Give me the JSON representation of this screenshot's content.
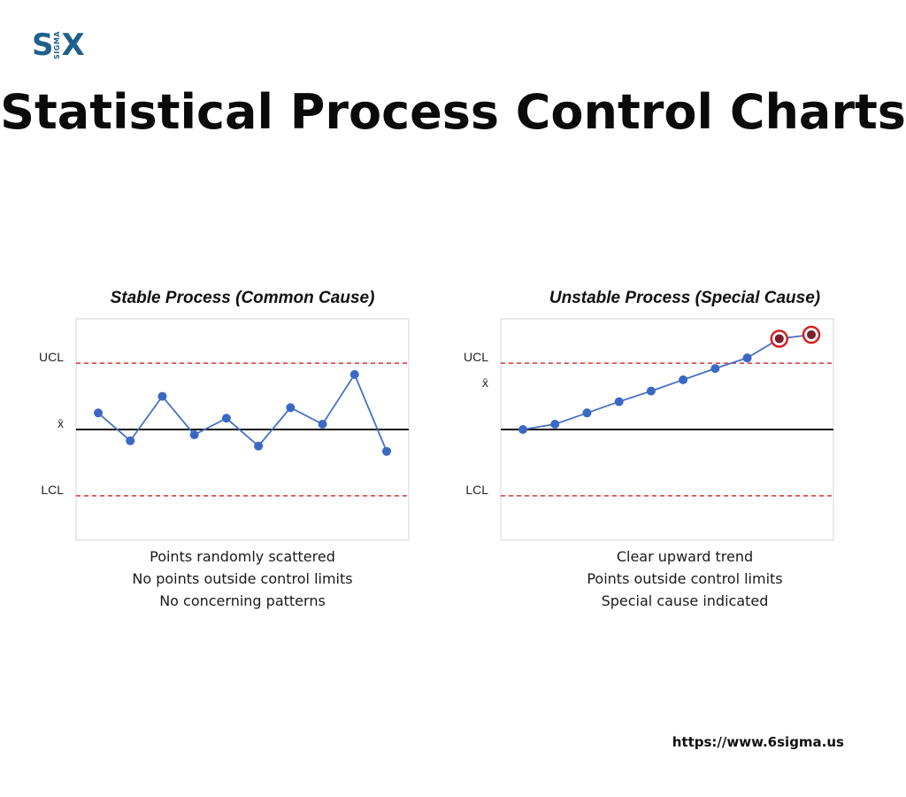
{
  "logo": {
    "left": "S",
    "middle": "SIGMA",
    "right": "X"
  },
  "title": "Statistical Process Control Charts",
  "footer_url": "https://www.6sigma.us",
  "colors": {
    "line": "#4472c4",
    "point": "#3b68c4",
    "limit": "#e03030",
    "center": "#111111",
    "highlight": "#d62020",
    "highlight_fill": "#7a1f2e",
    "logo": "#1f5f8b"
  },
  "chart_data": [
    {
      "type": "line",
      "title": "Stable Process (Common Cause)",
      "x": [
        1,
        2,
        3,
        4,
        5,
        6,
        7,
        8,
        9,
        10
      ],
      "values": [
        0.25,
        -0.17,
        0.5,
        -0.08,
        0.17,
        -0.25,
        0.33,
        0.08,
        0.83,
        -0.33
      ],
      "ylim": [
        -1.67,
        1.67
      ],
      "center_line": {
        "label": "x̄",
        "value": 0
      },
      "control_limits": {
        "ucl_label": "UCL",
        "ucl": 1.0,
        "lcl_label": "LCL",
        "lcl": -1.0
      },
      "highlighted_points": [],
      "notes": [
        "Points randomly scattered",
        "No points outside control limits",
        "No concerning patterns"
      ]
    },
    {
      "type": "line",
      "title": "Unstable Process (Special Cause)",
      "x": [
        1,
        2,
        3,
        4,
        5,
        6,
        7,
        8,
        9,
        10
      ],
      "values": [
        0.0,
        0.08,
        0.25,
        0.42,
        0.58,
        0.75,
        0.92,
        1.08,
        1.37,
        1.43
      ],
      "ylim": [
        -1.67,
        1.67
      ],
      "center_line": {
        "label": "x̄",
        "value": 0
      },
      "control_limits": {
        "ucl_label": "UCL",
        "ucl": 1.0,
        "lcl_label": "LCL",
        "lcl": -1.0
      },
      "highlighted_points": [
        8,
        9
      ],
      "notes": [
        "Clear upward trend",
        "Points outside control limits",
        "Special cause indicated"
      ]
    }
  ]
}
